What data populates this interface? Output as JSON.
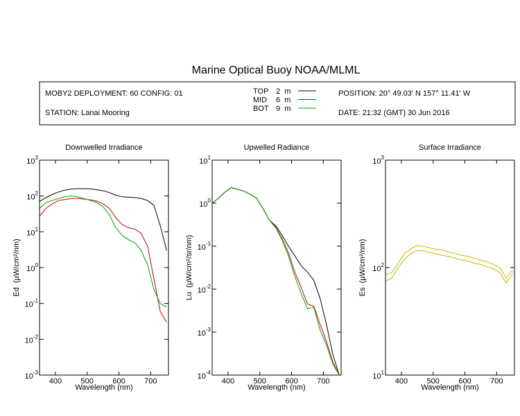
{
  "header": {
    "title": "Marine Optical Buoy NOAA/MLML",
    "deployment": "MOBY2 DEPLOYMENT: 60 CONFIG: 01",
    "station": "STATION: Lanai Mooring",
    "position": "POSITION: 20° 49.03' N  157° 11.41' W",
    "date": "DATE: 21:32 (GMT) 30 Jun 2016",
    "legend": [
      {
        "name": "TOP",
        "depth": "2  m",
        "color": "#000000"
      },
      {
        "name": "MID",
        "depth": "6  m",
        "color": "#cc0000"
      },
      {
        "name": "BOT",
        "depth": "9  m",
        "color": "#00a000"
      }
    ]
  },
  "chart_data": [
    {
      "type": "line",
      "title": "Downwelled Irradiance",
      "xlabel": "Wavelength (nm)",
      "ylabel": "Ed  (µW/cm²/nm)",
      "log_y": true,
      "x": [
        350,
        370,
        390,
        410,
        430,
        450,
        470,
        490,
        510,
        530,
        550,
        570,
        590,
        610,
        630,
        650,
        670,
        690,
        710,
        730,
        750
      ],
      "xlim": [
        350,
        756
      ],
      "xticks": [
        400,
        500,
        600,
        700
      ],
      "ylim": [
        0.001,
        1000
      ],
      "yticks": [
        {
          "value": 0.001,
          "label": "10",
          "exponent": "-3"
        },
        {
          "value": 0.01,
          "label": "10",
          "exponent": "-2"
        },
        {
          "value": 0.1,
          "label": "10",
          "exponent": "-1"
        },
        {
          "value": 1,
          "label": "10",
          "exponent": "0"
        },
        {
          "value": 10,
          "label": "10",
          "exponent": "1"
        },
        {
          "value": 100,
          "label": "10",
          "exponent": "2"
        },
        {
          "value": 1000,
          "label": "10",
          "exponent": "3"
        }
      ],
      "series": [
        {
          "color": "#000000",
          "values": [
            70,
            90,
            110,
            130,
            145,
            155,
            160,
            160,
            158,
            150,
            140,
            125,
            105,
            95,
            92,
            90,
            85,
            75,
            55,
            15,
            3
          ]
        },
        {
          "color": "#cc0000",
          "values": [
            27,
            45,
            60,
            75,
            80,
            85,
            85,
            82,
            78,
            72,
            60,
            45,
            25,
            16,
            13,
            12,
            9,
            4,
            0.5,
            0.06,
            0.03
          ]
        },
        {
          "color": "#00a000",
          "values": [
            45,
            65,
            75,
            85,
            95,
            100,
            95,
            85,
            75,
            65,
            50,
            30,
            13,
            8,
            6,
            5,
            3,
            1.2,
            0.25,
            0.1,
            0.08
          ]
        }
      ]
    },
    {
      "type": "line",
      "title": "Upwelled Radiance",
      "xlabel": "Wavelength (nm)",
      "ylabel": "Lu  (µW/cm²/sr/nm)",
      "log_y": true,
      "x": [
        350,
        370,
        390,
        410,
        430,
        450,
        470,
        490,
        510,
        530,
        550,
        570,
        590,
        610,
        630,
        650,
        670,
        690,
        710,
        730,
        750
      ],
      "xlim": [
        350,
        756
      ],
      "xticks": [
        400,
        500,
        600,
        700
      ],
      "ylim": [
        0.0001,
        10
      ],
      "yticks": [
        {
          "value": 0.0001,
          "label": "10",
          "exponent": "-4"
        },
        {
          "value": 0.001,
          "label": "10",
          "exponent": "-3"
        },
        {
          "value": 0.01,
          "label": "10",
          "exponent": "-2"
        },
        {
          "value": 0.1,
          "label": "10",
          "exponent": "-1"
        },
        {
          "value": 1,
          "label": "10",
          "exponent": "0"
        },
        {
          "value": 10,
          "label": "10",
          "exponent": "1"
        }
      ],
      "series": [
        {
          "color": "#000000",
          "values": [
            1.0,
            1.3,
            1.8,
            2.3,
            2.1,
            1.9,
            1.6,
            1.3,
            0.75,
            0.4,
            0.3,
            0.18,
            0.1,
            0.06,
            0.035,
            0.025,
            0.016,
            0.006,
            0.0015,
            0.0003,
            0.0001
          ]
        },
        {
          "color": "#cc0000",
          "values": [
            1.0,
            1.3,
            1.8,
            2.3,
            2.1,
            1.9,
            1.6,
            1.3,
            0.75,
            0.4,
            0.28,
            0.15,
            0.07,
            0.025,
            0.011,
            0.0045,
            0.004,
            0.0015,
            0.0006,
            0.0002,
            0.0001
          ]
        },
        {
          "color": "#00a000",
          "values": [
            1.0,
            1.3,
            1.8,
            2.3,
            2.1,
            1.9,
            1.6,
            1.3,
            0.75,
            0.4,
            0.27,
            0.14,
            0.06,
            0.02,
            0.008,
            0.0035,
            0.0038,
            0.0011,
            0.0005,
            0.00018,
            0.0001
          ]
        }
      ]
    },
    {
      "type": "line",
      "title": "Surface Irradiance",
      "xlabel": "Wavelength (nm)",
      "ylabel": "Es  (µW/cm²/nm)",
      "log_y": true,
      "x": [
        350,
        370,
        390,
        410,
        430,
        450,
        470,
        490,
        510,
        530,
        550,
        570,
        590,
        610,
        630,
        650,
        670,
        690,
        710,
        730,
        750
      ],
      "xlim": [
        350,
        756
      ],
      "xticks": [
        400,
        500,
        600,
        700
      ],
      "ylim": [
        10,
        1000
      ],
      "yticks": [
        {
          "value": 10,
          "label": "10",
          "exponent": "1"
        },
        {
          "value": 100,
          "label": "10",
          "exponent": "2"
        },
        {
          "value": 1000,
          "label": "10",
          "exponent": "3"
        }
      ],
      "series": [
        {
          "color": "#c8b400",
          "values": [
            85,
            90,
            110,
            135,
            150,
            160,
            158,
            152,
            148,
            145,
            140,
            135,
            130,
            127,
            122,
            118,
            113,
            107,
            100,
            80,
            95
          ]
        },
        {
          "color": "#c8b400",
          "values": [
            75,
            80,
            100,
            120,
            135,
            145,
            143,
            138,
            134,
            130,
            127,
            122,
            118,
            115,
            110,
            107,
            102,
            97,
            90,
            72,
            88
          ]
        }
      ]
    }
  ]
}
